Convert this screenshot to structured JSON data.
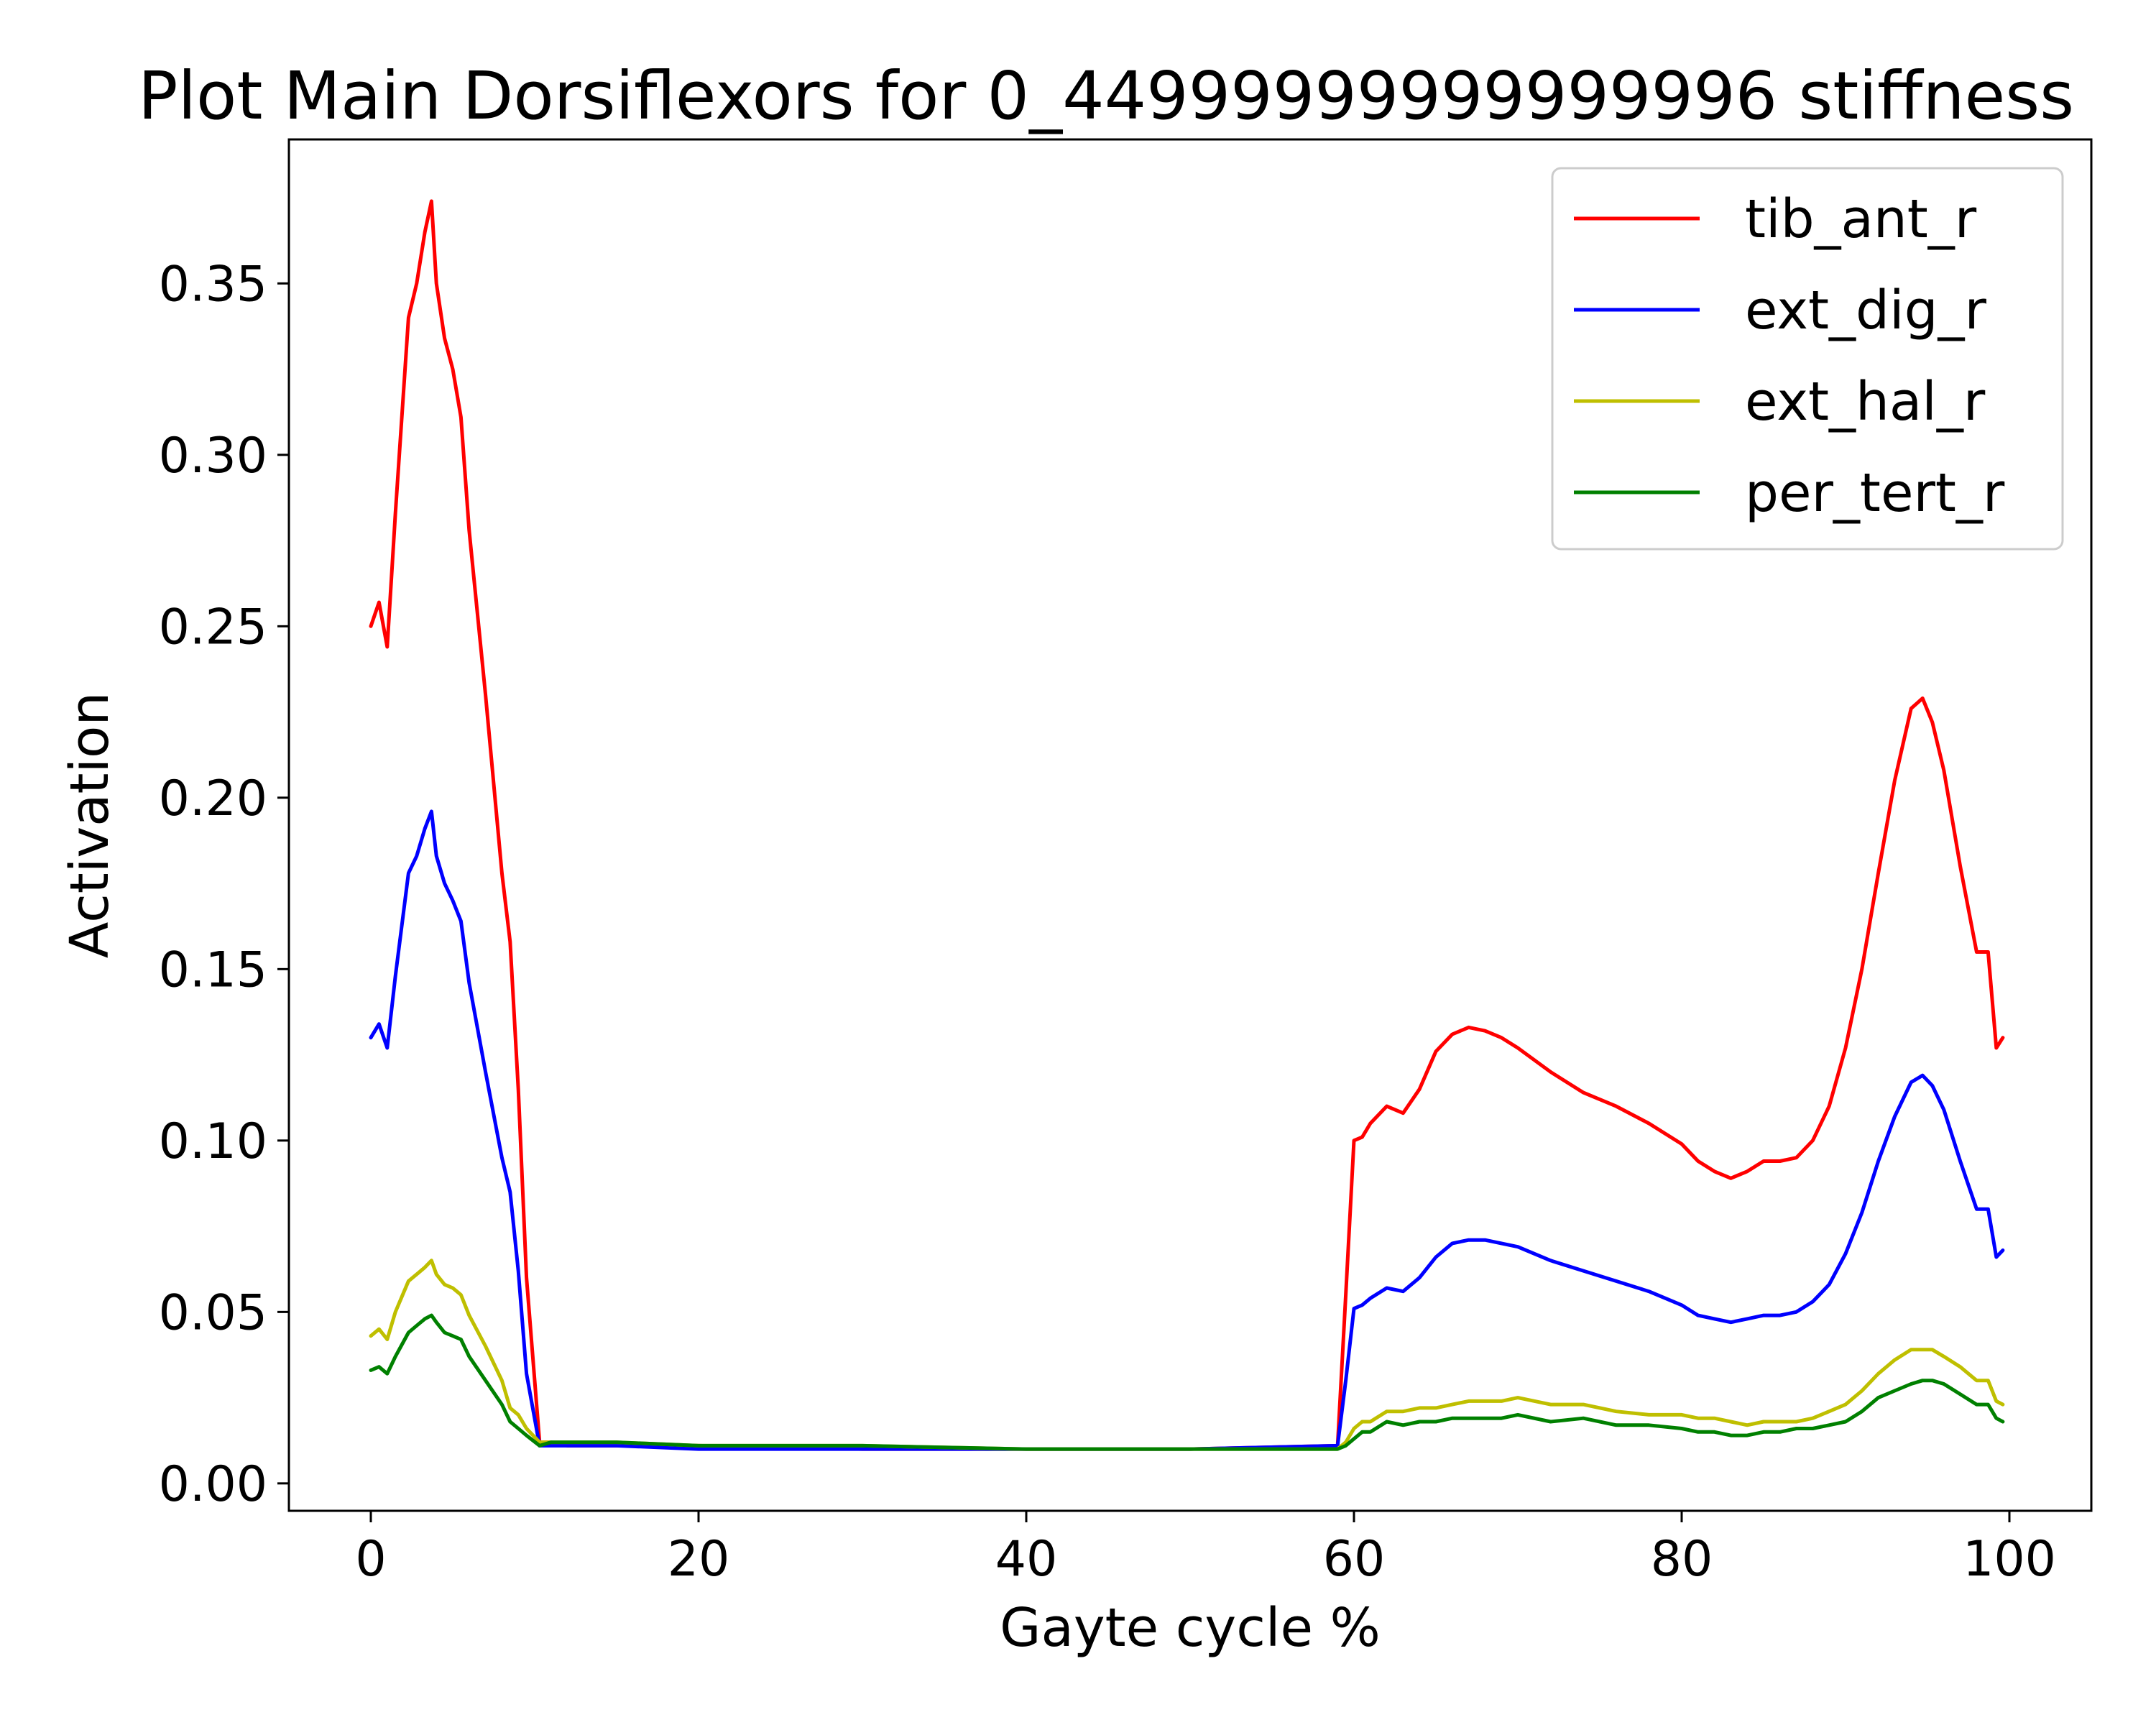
{
  "chart_data": {
    "type": "line",
    "title": "Plot Main Dorsiflexors for 0_44999999999999996 stiffness",
    "xlabel": "Gayte cycle %",
    "ylabel": "Activation",
    "xlim": [
      -5,
      105
    ],
    "ylim": [
      -0.008,
      0.392
    ],
    "xticks": [
      0,
      20,
      40,
      60,
      80,
      100
    ],
    "xtick_labels": [
      "0",
      "20",
      "40",
      "60",
      "80",
      "100"
    ],
    "yticks": [
      0.0,
      0.05,
      0.1,
      0.15,
      0.2,
      0.25,
      0.3,
      0.35
    ],
    "ytick_labels": [
      "0.00",
      "0.05",
      "0.10",
      "0.15",
      "0.20",
      "0.25",
      "0.30",
      "0.35"
    ],
    "grid": false,
    "legend_position": "top-right",
    "series": [
      {
        "name": "tib_ant_r",
        "color": "#ff0000",
        "x": [
          0,
          0.5,
          1,
          1.5,
          2.3,
          2.8,
          3.3,
          3.7,
          4,
          4.5,
          5,
          5.5,
          6,
          7,
          8,
          8.5,
          9,
          9.5,
          10.3,
          11,
          12,
          15,
          20,
          30,
          40,
          50,
          59,
          59.5,
          60,
          60.5,
          61,
          62,
          63,
          64,
          65,
          66,
          67,
          68,
          69,
          70,
          72,
          74,
          76,
          78,
          80,
          81,
          82,
          83,
          84,
          85,
          86,
          87,
          88,
          89,
          90,
          91,
          92,
          93,
          94,
          94.7,
          95.3,
          96,
          97,
          98,
          98.7,
          99.2,
          99.6
        ],
        "values": [
          0.25,
          0.257,
          0.244,
          0.283,
          0.34,
          0.35,
          0.365,
          0.374,
          0.35,
          0.334,
          0.325,
          0.311,
          0.278,
          0.23,
          0.178,
          0.158,
          0.115,
          0.06,
          0.012,
          0.012,
          0.011,
          0.011,
          0.011,
          0.01,
          0.01,
          0.01,
          0.011,
          0.055,
          0.1,
          0.101,
          0.105,
          0.11,
          0.108,
          0.115,
          0.126,
          0.131,
          0.133,
          0.132,
          0.13,
          0.127,
          0.12,
          0.114,
          0.11,
          0.105,
          0.099,
          0.094,
          0.091,
          0.089,
          0.091,
          0.094,
          0.094,
          0.095,
          0.1,
          0.11,
          0.127,
          0.15,
          0.178,
          0.205,
          0.226,
          0.229,
          0.222,
          0.208,
          0.18,
          0.155,
          0.155,
          0.127,
          0.13
        ]
      },
      {
        "name": "ext_dig_r",
        "color": "#0000ff",
        "x": [
          0,
          0.5,
          1,
          1.5,
          2.3,
          2.8,
          3.3,
          3.7,
          4,
          4.5,
          5,
          5.5,
          6,
          7,
          8,
          8.5,
          9,
          9.5,
          10.3,
          11,
          12,
          15,
          20,
          30,
          40,
          50,
          59,
          59.5,
          60,
          60.5,
          61,
          62,
          63,
          64,
          65,
          66,
          67,
          68,
          69,
          70,
          72,
          74,
          76,
          78,
          80,
          81,
          82,
          83,
          84,
          85,
          86,
          87,
          88,
          89,
          90,
          91,
          92,
          93,
          94,
          94.7,
          95.3,
          96,
          97,
          98,
          98.7,
          99.2,
          99.6
        ],
        "values": [
          0.13,
          0.134,
          0.127,
          0.148,
          0.178,
          0.183,
          0.191,
          0.196,
          0.183,
          0.175,
          0.17,
          0.164,
          0.146,
          0.12,
          0.095,
          0.085,
          0.062,
          0.032,
          0.011,
          0.011,
          0.011,
          0.011,
          0.01,
          0.01,
          0.01,
          0.01,
          0.011,
          0.03,
          0.051,
          0.052,
          0.054,
          0.057,
          0.056,
          0.06,
          0.066,
          0.07,
          0.071,
          0.071,
          0.07,
          0.069,
          0.065,
          0.062,
          0.059,
          0.056,
          0.052,
          0.049,
          0.048,
          0.047,
          0.048,
          0.049,
          0.049,
          0.05,
          0.053,
          0.058,
          0.067,
          0.079,
          0.094,
          0.107,
          0.117,
          0.119,
          0.116,
          0.109,
          0.094,
          0.08,
          0.08,
          0.066,
          0.068
        ]
      },
      {
        "name": "ext_hal_r",
        "color": "#bfbf00",
        "x": [
          0,
          0.5,
          1,
          1.5,
          2.3,
          2.8,
          3.3,
          3.7,
          4,
          4.5,
          5,
          5.5,
          6,
          7,
          8,
          8.5,
          9,
          9.5,
          10.3,
          11,
          12,
          15,
          20,
          30,
          40,
          50,
          59,
          59.5,
          60,
          60.5,
          61,
          62,
          63,
          64,
          65,
          66,
          67,
          68,
          69,
          70,
          72,
          74,
          76,
          78,
          80,
          81,
          82,
          83,
          84,
          85,
          86,
          87,
          88,
          89,
          90,
          91,
          92,
          93,
          94,
          94.7,
          95.3,
          96,
          97,
          98,
          98.7,
          99.2,
          99.6
        ],
        "values": [
          0.043,
          0.045,
          0.042,
          0.05,
          0.059,
          0.061,
          0.063,
          0.065,
          0.061,
          0.058,
          0.057,
          0.055,
          0.049,
          0.04,
          0.03,
          0.022,
          0.02,
          0.016,
          0.012,
          0.012,
          0.012,
          0.012,
          0.011,
          0.011,
          0.01,
          0.01,
          0.01,
          0.012,
          0.016,
          0.018,
          0.018,
          0.021,
          0.021,
          0.022,
          0.022,
          0.023,
          0.024,
          0.024,
          0.024,
          0.025,
          0.023,
          0.023,
          0.021,
          0.02,
          0.02,
          0.019,
          0.019,
          0.018,
          0.017,
          0.018,
          0.018,
          0.018,
          0.019,
          0.021,
          0.023,
          0.027,
          0.032,
          0.036,
          0.039,
          0.039,
          0.039,
          0.037,
          0.034,
          0.03,
          0.03,
          0.024,
          0.023
        ]
      },
      {
        "name": "per_tert_r",
        "color": "#008000",
        "x": [
          0,
          0.5,
          1,
          1.5,
          2.3,
          2.8,
          3.3,
          3.7,
          4,
          4.5,
          5,
          5.5,
          6,
          7,
          8,
          8.5,
          9,
          9.5,
          10.3,
          11,
          12,
          15,
          20,
          30,
          40,
          50,
          59,
          59.5,
          60,
          60.5,
          61,
          62,
          63,
          64,
          65,
          66,
          67,
          68,
          69,
          70,
          72,
          74,
          76,
          78,
          80,
          81,
          82,
          83,
          84,
          85,
          86,
          87,
          88,
          89,
          90,
          91,
          92,
          93,
          94,
          94.7,
          95.3,
          96,
          97,
          98,
          98.7,
          99.2,
          99.6
        ],
        "values": [
          0.033,
          0.034,
          0.032,
          0.037,
          0.044,
          0.046,
          0.048,
          0.049,
          0.047,
          0.044,
          0.043,
          0.042,
          0.037,
          0.03,
          0.023,
          0.018,
          0.016,
          0.014,
          0.011,
          0.012,
          0.012,
          0.012,
          0.011,
          0.011,
          0.01,
          0.01,
          0.01,
          0.011,
          0.013,
          0.015,
          0.015,
          0.018,
          0.017,
          0.018,
          0.018,
          0.019,
          0.019,
          0.019,
          0.019,
          0.02,
          0.018,
          0.019,
          0.017,
          0.017,
          0.016,
          0.015,
          0.015,
          0.014,
          0.014,
          0.015,
          0.015,
          0.016,
          0.016,
          0.017,
          0.018,
          0.021,
          0.025,
          0.027,
          0.029,
          0.03,
          0.03,
          0.029,
          0.026,
          0.023,
          0.023,
          0.019,
          0.018
        ]
      }
    ]
  }
}
